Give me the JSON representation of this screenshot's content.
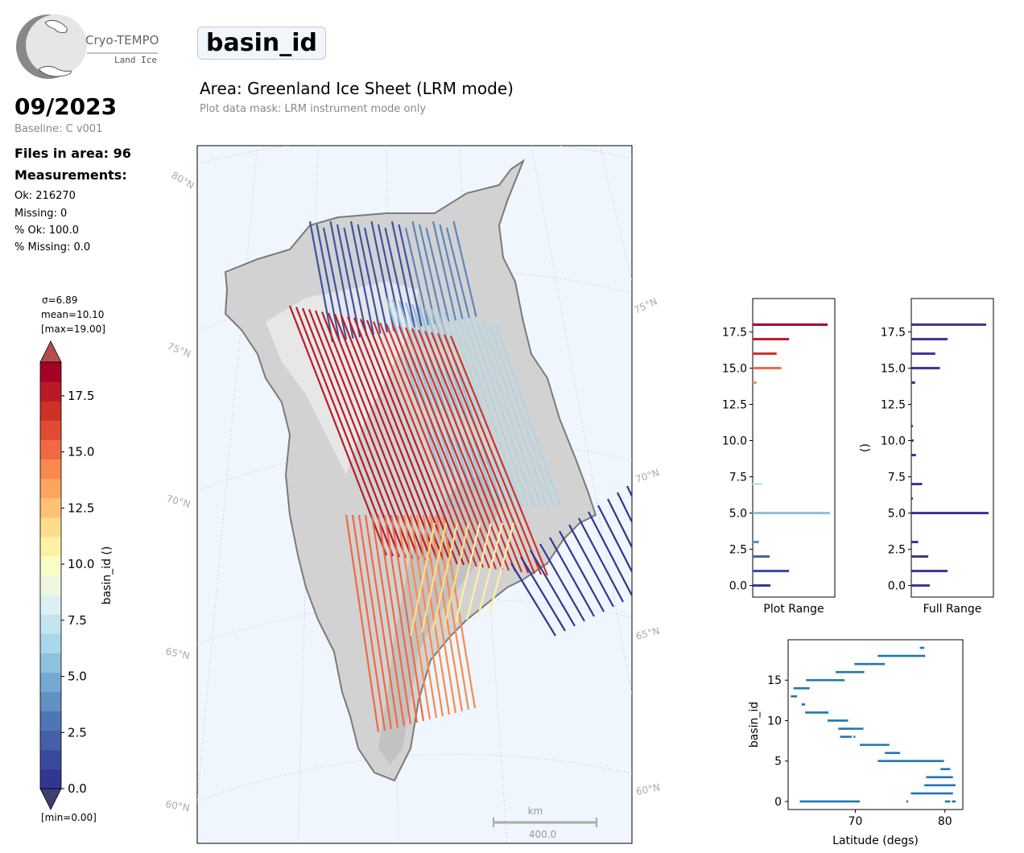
{
  "logo": {
    "line1": "Cryo-TEMPO",
    "line2": "Land Ice"
  },
  "header": {
    "date": "09/2023",
    "baseline": "Baseline: C v001",
    "title": "basin_id",
    "area": "Area: Greenland Ice Sheet (LRM mode)",
    "mask": "Plot data mask: LRM instrument mode only"
  },
  "stats": {
    "files": "Files in area: 96",
    "measurements_label": "Measurements:",
    "ok": "Ok: 216270",
    "missing": "Missing: 0",
    "pct_ok": "% Ok: 100.0",
    "pct_missing": "% Missing: 0.0"
  },
  "colorbar": {
    "sigma": "σ=6.89",
    "mean": "mean=10.10",
    "max": "[max=19.00]",
    "min": "[min=0.00]",
    "label": "basin_id ()",
    "ticks": [
      "0.0",
      "2.5",
      "5.0",
      "7.5",
      "10.0",
      "12.5",
      "15.0",
      "17.5"
    ],
    "colors": [
      "#313695",
      "#394a9e",
      "#4560a9",
      "#4e76b4",
      "#6290c2",
      "#76a9d2",
      "#8fc1de",
      "#aad7e7",
      "#c4e5ef",
      "#dcf0f3",
      "#eef8e0",
      "#fbfdc6",
      "#fff0a5",
      "#fedd8a",
      "#fdc274",
      "#fca55e",
      "#f88a4e",
      "#f06942",
      "#e04b33",
      "#cd3227",
      "#b81b26",
      "#a50026"
    ],
    "extend_max": "#b54b4b",
    "extend_min": "#3d3f70"
  },
  "map": {
    "lat_labels": [
      "80°N",
      "75°N",
      "70°N",
      "65°N",
      "60°N",
      "75°N",
      "70°N",
      "65°N",
      "60°N"
    ],
    "scale_unit": "km",
    "scale_value": "400.0"
  },
  "chart_data": [
    {
      "type": "bar",
      "orientation": "horizontal",
      "xlabel": "Plot Range",
      "ylabel": "",
      "ylim": [
        -0.8,
        19.8
      ],
      "yticks": [
        "0.0",
        "2.5",
        "5.0",
        "7.5",
        "10.0",
        "12.5",
        "15.0",
        "17.5"
      ],
      "bins": [
        0,
        1,
        2,
        3,
        5,
        7,
        14,
        15,
        16,
        17,
        18
      ],
      "values": [
        0.23,
        0.47,
        0.22,
        0.08,
        1.0,
        0.12,
        0.05,
        0.37,
        0.31,
        0.47,
        0.97
      ]
    },
    {
      "type": "bar",
      "orientation": "horizontal",
      "xlabel": "Full Range",
      "ylabel": "()",
      "ylim": [
        -0.8,
        19.8
      ],
      "yticks": [
        "0.0",
        "2.5",
        "5.0",
        "7.5",
        "10.0",
        "12.5",
        "15.0",
        "17.5"
      ],
      "bins": [
        0,
        1,
        2,
        3,
        5,
        6,
        7,
        9,
        10,
        11,
        14,
        15,
        16,
        17,
        18
      ],
      "values": [
        0.24,
        0.47,
        0.22,
        0.09,
        1.0,
        0.02,
        0.14,
        0.06,
        0.03,
        0.02,
        0.05,
        0.37,
        0.31,
        0.47,
        0.97
      ]
    },
    {
      "type": "scatter",
      "xlabel": "Latitude (degs)",
      "ylabel": "basin_id",
      "xlim": [
        62.5,
        82
      ],
      "ylim": [
        -1,
        20
      ],
      "xticks": [
        "70",
        "80"
      ],
      "yticks": [
        "0",
        "5",
        "10",
        "15"
      ],
      "segments": [
        {
          "basin": 0,
          "lat": [
            63.8,
            70.5
          ]
        },
        {
          "basin": 0,
          "lat": [
            75.7,
            75.9
          ]
        },
        {
          "basin": 0,
          "lat": [
            80.0,
            80.6
          ]
        },
        {
          "basin": 0,
          "lat": [
            80.8,
            81.2
          ]
        },
        {
          "basin": 1,
          "lat": [
            76.2,
            80.9
          ]
        },
        {
          "basin": 2,
          "lat": [
            77.7,
            81.2
          ]
        },
        {
          "basin": 3,
          "lat": [
            77.9,
            80.9
          ]
        },
        {
          "basin": 4,
          "lat": [
            79.5,
            80.6
          ]
        },
        {
          "basin": 5,
          "lat": [
            72.5,
            79.9
          ]
        },
        {
          "basin": 6,
          "lat": [
            73.3,
            75.0
          ]
        },
        {
          "basin": 7,
          "lat": [
            70.5,
            73.8
          ]
        },
        {
          "basin": 8,
          "lat": [
            68.3,
            69.6
          ]
        },
        {
          "basin": 8,
          "lat": [
            69.8,
            70.0
          ]
        },
        {
          "basin": 9,
          "lat": [
            68.1,
            70.9
          ]
        },
        {
          "basin": 10,
          "lat": [
            66.9,
            69.2
          ]
        },
        {
          "basin": 11,
          "lat": [
            64.4,
            67.0
          ]
        },
        {
          "basin": 12,
          "lat": [
            64.0,
            64.4
          ]
        },
        {
          "basin": 13,
          "lat": [
            62.8,
            63.5
          ]
        },
        {
          "basin": 14,
          "lat": [
            63.1,
            64.9
          ]
        },
        {
          "basin": 15,
          "lat": [
            64.5,
            68.8
          ]
        },
        {
          "basin": 16,
          "lat": [
            67.8,
            71.0
          ]
        },
        {
          "basin": 17,
          "lat": [
            69.9,
            73.3
          ]
        },
        {
          "basin": 18,
          "lat": [
            72.5,
            77.8
          ]
        },
        {
          "basin": 19,
          "lat": [
            77.2,
            77.7
          ]
        }
      ]
    }
  ]
}
